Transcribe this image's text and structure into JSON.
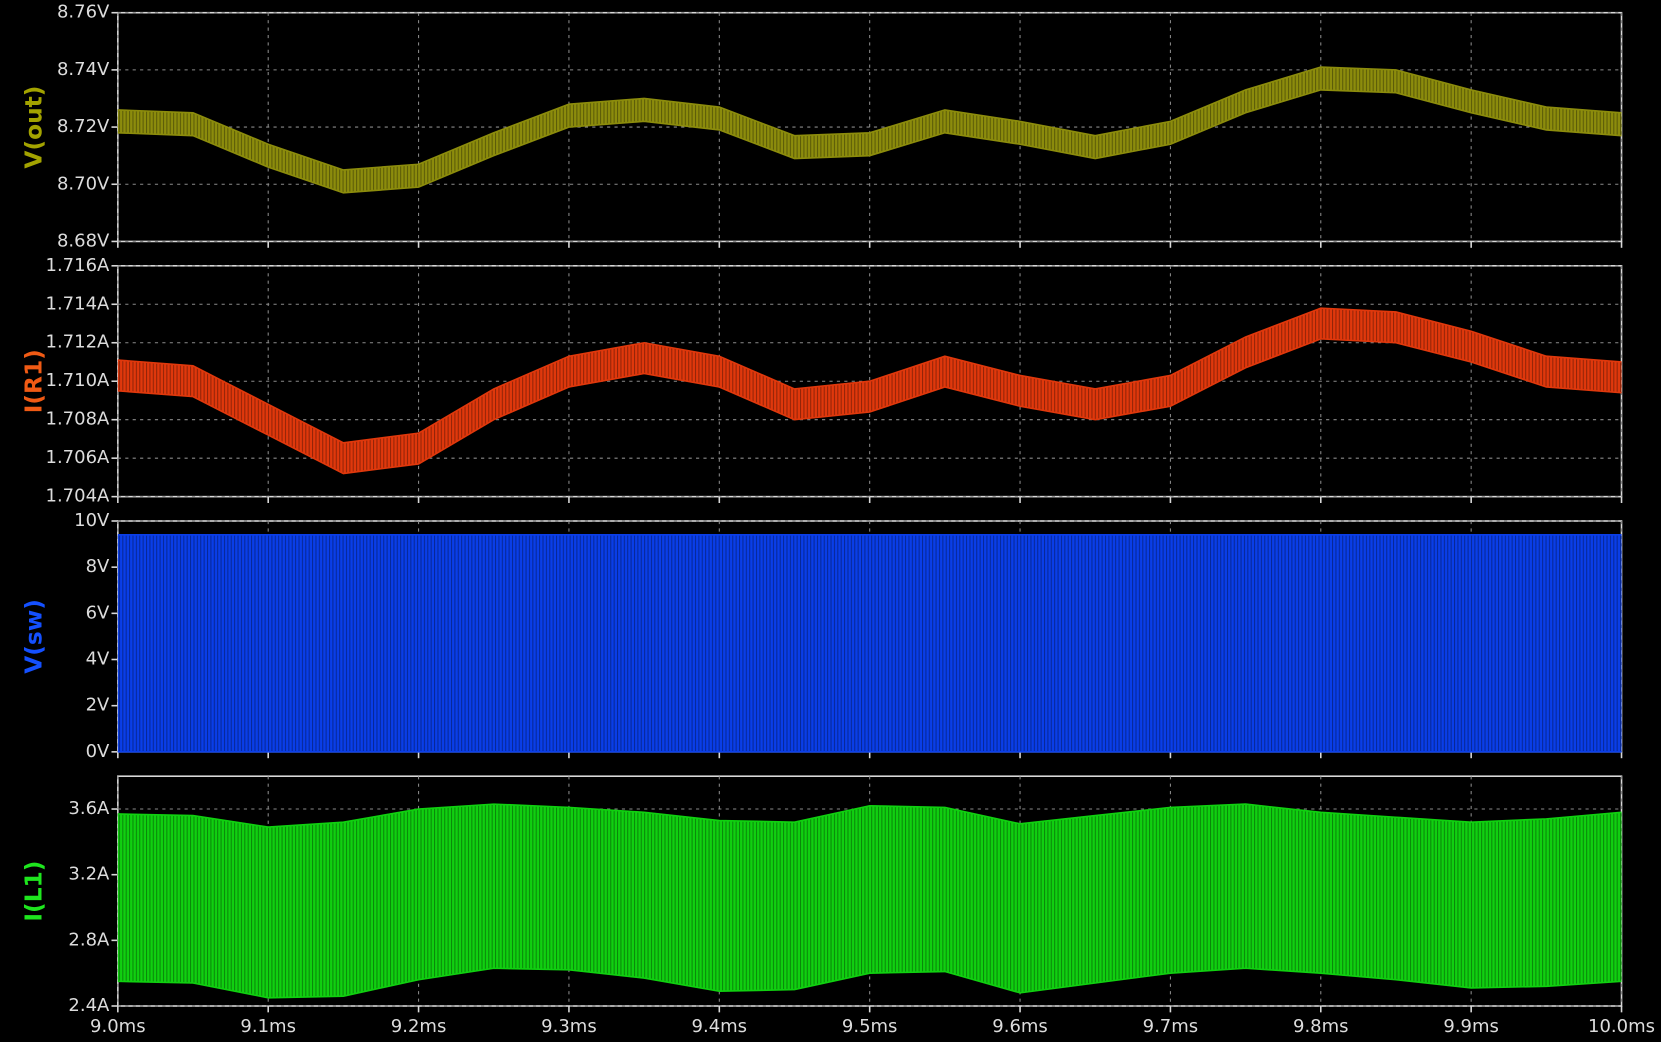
{
  "chart_data": [
    {
      "type": "band",
      "ylabel": "V(out)",
      "color": "#8c8c0c",
      "label_color": "#a3a300",
      "grid": true,
      "xlim": [
        9.0,
        10.0
      ],
      "x": [
        9.0,
        9.05,
        9.1,
        9.15,
        9.2,
        9.25,
        9.3,
        9.35,
        9.4,
        9.45,
        9.5,
        9.55,
        9.6,
        9.65,
        9.7,
        9.75,
        9.8,
        9.85,
        9.9,
        9.95,
        10.0
      ],
      "high": [
        8.726,
        8.725,
        8.714,
        8.705,
        8.707,
        8.718,
        8.728,
        8.73,
        8.727,
        8.717,
        8.718,
        8.726,
        8.722,
        8.717,
        8.722,
        8.733,
        8.741,
        8.74,
        8.733,
        8.727,
        8.725
      ],
      "low": [
        8.718,
        8.717,
        8.706,
        8.697,
        8.699,
        8.71,
        8.72,
        8.722,
        8.719,
        8.709,
        8.71,
        8.718,
        8.714,
        8.709,
        8.714,
        8.725,
        8.733,
        8.732,
        8.725,
        8.719,
        8.717
      ],
      "ylim": [
        8.68,
        8.76
      ],
      "yticks": [
        {
          "value": 8.68,
          "label": "8.68V"
        },
        {
          "value": 8.7,
          "label": "8.70V"
        },
        {
          "value": 8.72,
          "label": "8.72V"
        },
        {
          "value": 8.74,
          "label": "8.74V"
        },
        {
          "value": 8.76,
          "label": "8.76V"
        }
      ]
    },
    {
      "type": "band",
      "ylabel": "I(R1)",
      "color": "#e0380c",
      "label_color": "#f05a14",
      "grid": true,
      "xlim": [
        9.0,
        10.0
      ],
      "x": [
        9.0,
        9.05,
        9.1,
        9.15,
        9.2,
        9.25,
        9.3,
        9.35,
        9.4,
        9.45,
        9.5,
        9.55,
        9.6,
        9.65,
        9.7,
        9.75,
        9.8,
        9.85,
        9.9,
        9.95,
        10.0
      ],
      "high": [
        1.7111,
        1.7108,
        1.7088,
        1.7068,
        1.7073,
        1.7096,
        1.7113,
        1.712,
        1.7113,
        1.7096,
        1.71,
        1.7113,
        1.7103,
        1.7096,
        1.7103,
        1.7123,
        1.7138,
        1.7136,
        1.7126,
        1.7113,
        1.711
      ],
      "low": [
        1.7095,
        1.7092,
        1.7072,
        1.7052,
        1.7057,
        1.708,
        1.7097,
        1.7104,
        1.7097,
        1.708,
        1.7084,
        1.7097,
        1.7087,
        1.708,
        1.7087,
        1.7107,
        1.7122,
        1.712,
        1.711,
        1.7097,
        1.7094
      ],
      "ylim": [
        1.704,
        1.716
      ],
      "yticks": [
        {
          "value": 1.704,
          "label": "1.704A"
        },
        {
          "value": 1.706,
          "label": "1.706A"
        },
        {
          "value": 1.708,
          "label": "1.708A"
        },
        {
          "value": 1.71,
          "label": "1.710A"
        },
        {
          "value": 1.712,
          "label": "1.712A"
        },
        {
          "value": 1.714,
          "label": "1.714A"
        },
        {
          "value": 1.716,
          "label": "1.716A"
        }
      ]
    },
    {
      "type": "band",
      "ylabel": "V(sw)",
      "color": "#0a3ee8",
      "label_color": "#1450ff",
      "grid": true,
      "xlim": [
        9.0,
        10.0
      ],
      "x": [
        9.0,
        9.05,
        9.1,
        9.15,
        9.2,
        9.25,
        9.3,
        9.35,
        9.4,
        9.45,
        9.5,
        9.55,
        9.6,
        9.65,
        9.7,
        9.75,
        9.8,
        9.85,
        9.9,
        9.95,
        10.0
      ],
      "high": [
        9.4,
        9.4,
        9.4,
        9.4,
        9.4,
        9.4,
        9.4,
        9.4,
        9.4,
        9.4,
        9.4,
        9.4,
        9.4,
        9.4,
        9.4,
        9.4,
        9.4,
        9.4,
        9.4,
        9.4,
        9.4
      ],
      "low": [
        0,
        0,
        0,
        0,
        0,
        0,
        0,
        0,
        0,
        0,
        0,
        0,
        0,
        0,
        0,
        0,
        0,
        0,
        0,
        0,
        0
      ],
      "ylim": [
        0,
        10
      ],
      "yticks": [
        {
          "value": 0,
          "label": "0V"
        },
        {
          "value": 2,
          "label": "2V"
        },
        {
          "value": 4,
          "label": "4V"
        },
        {
          "value": 6,
          "label": "6V"
        },
        {
          "value": 8,
          "label": "8V"
        },
        {
          "value": 10,
          "label": "10V"
        }
      ]
    },
    {
      "type": "band",
      "ylabel": "I(L1)",
      "color": "#10d010",
      "label_color": "#1ee61e",
      "grid": true,
      "xlim": [
        9.0,
        10.0
      ],
      "x": [
        9.0,
        9.05,
        9.1,
        9.15,
        9.2,
        9.25,
        9.3,
        9.35,
        9.4,
        9.45,
        9.5,
        9.55,
        9.6,
        9.65,
        9.7,
        9.75,
        9.8,
        9.85,
        9.9,
        9.95,
        10.0
      ],
      "high": [
        3.57,
        3.56,
        3.49,
        3.52,
        3.6,
        3.63,
        3.61,
        3.58,
        3.53,
        3.52,
        3.62,
        3.61,
        3.51,
        3.56,
        3.61,
        3.63,
        3.58,
        3.55,
        3.52,
        3.54,
        3.58
      ],
      "low": [
        2.55,
        2.54,
        2.45,
        2.46,
        2.56,
        2.63,
        2.62,
        2.57,
        2.49,
        2.5,
        2.6,
        2.61,
        2.48,
        2.54,
        2.6,
        2.63,
        2.6,
        2.56,
        2.51,
        2.52,
        2.55
      ],
      "ylim": [
        2.4,
        3.8
      ],
      "yticks": [
        {
          "value": 2.4,
          "label": "2.4A"
        },
        {
          "value": 2.8,
          "label": "2.8A"
        },
        {
          "value": 3.2,
          "label": "3.2A"
        },
        {
          "value": 3.6,
          "label": "3.6A"
        }
      ],
      "xticks": [
        {
          "value": 9.0,
          "label": "9.0ms"
        },
        {
          "value": 9.1,
          "label": "9.1ms"
        },
        {
          "value": 9.2,
          "label": "9.2ms"
        },
        {
          "value": 9.3,
          "label": "9.3ms"
        },
        {
          "value": 9.4,
          "label": "9.4ms"
        },
        {
          "value": 9.5,
          "label": "9.5ms"
        },
        {
          "value": 9.6,
          "label": "9.6ms"
        },
        {
          "value": 9.7,
          "label": "9.7ms"
        },
        {
          "value": 9.8,
          "label": "9.8ms"
        },
        {
          "value": 9.9,
          "label": "9.9ms"
        },
        {
          "value": 10.0,
          "label": "10.0ms"
        }
      ]
    }
  ]
}
